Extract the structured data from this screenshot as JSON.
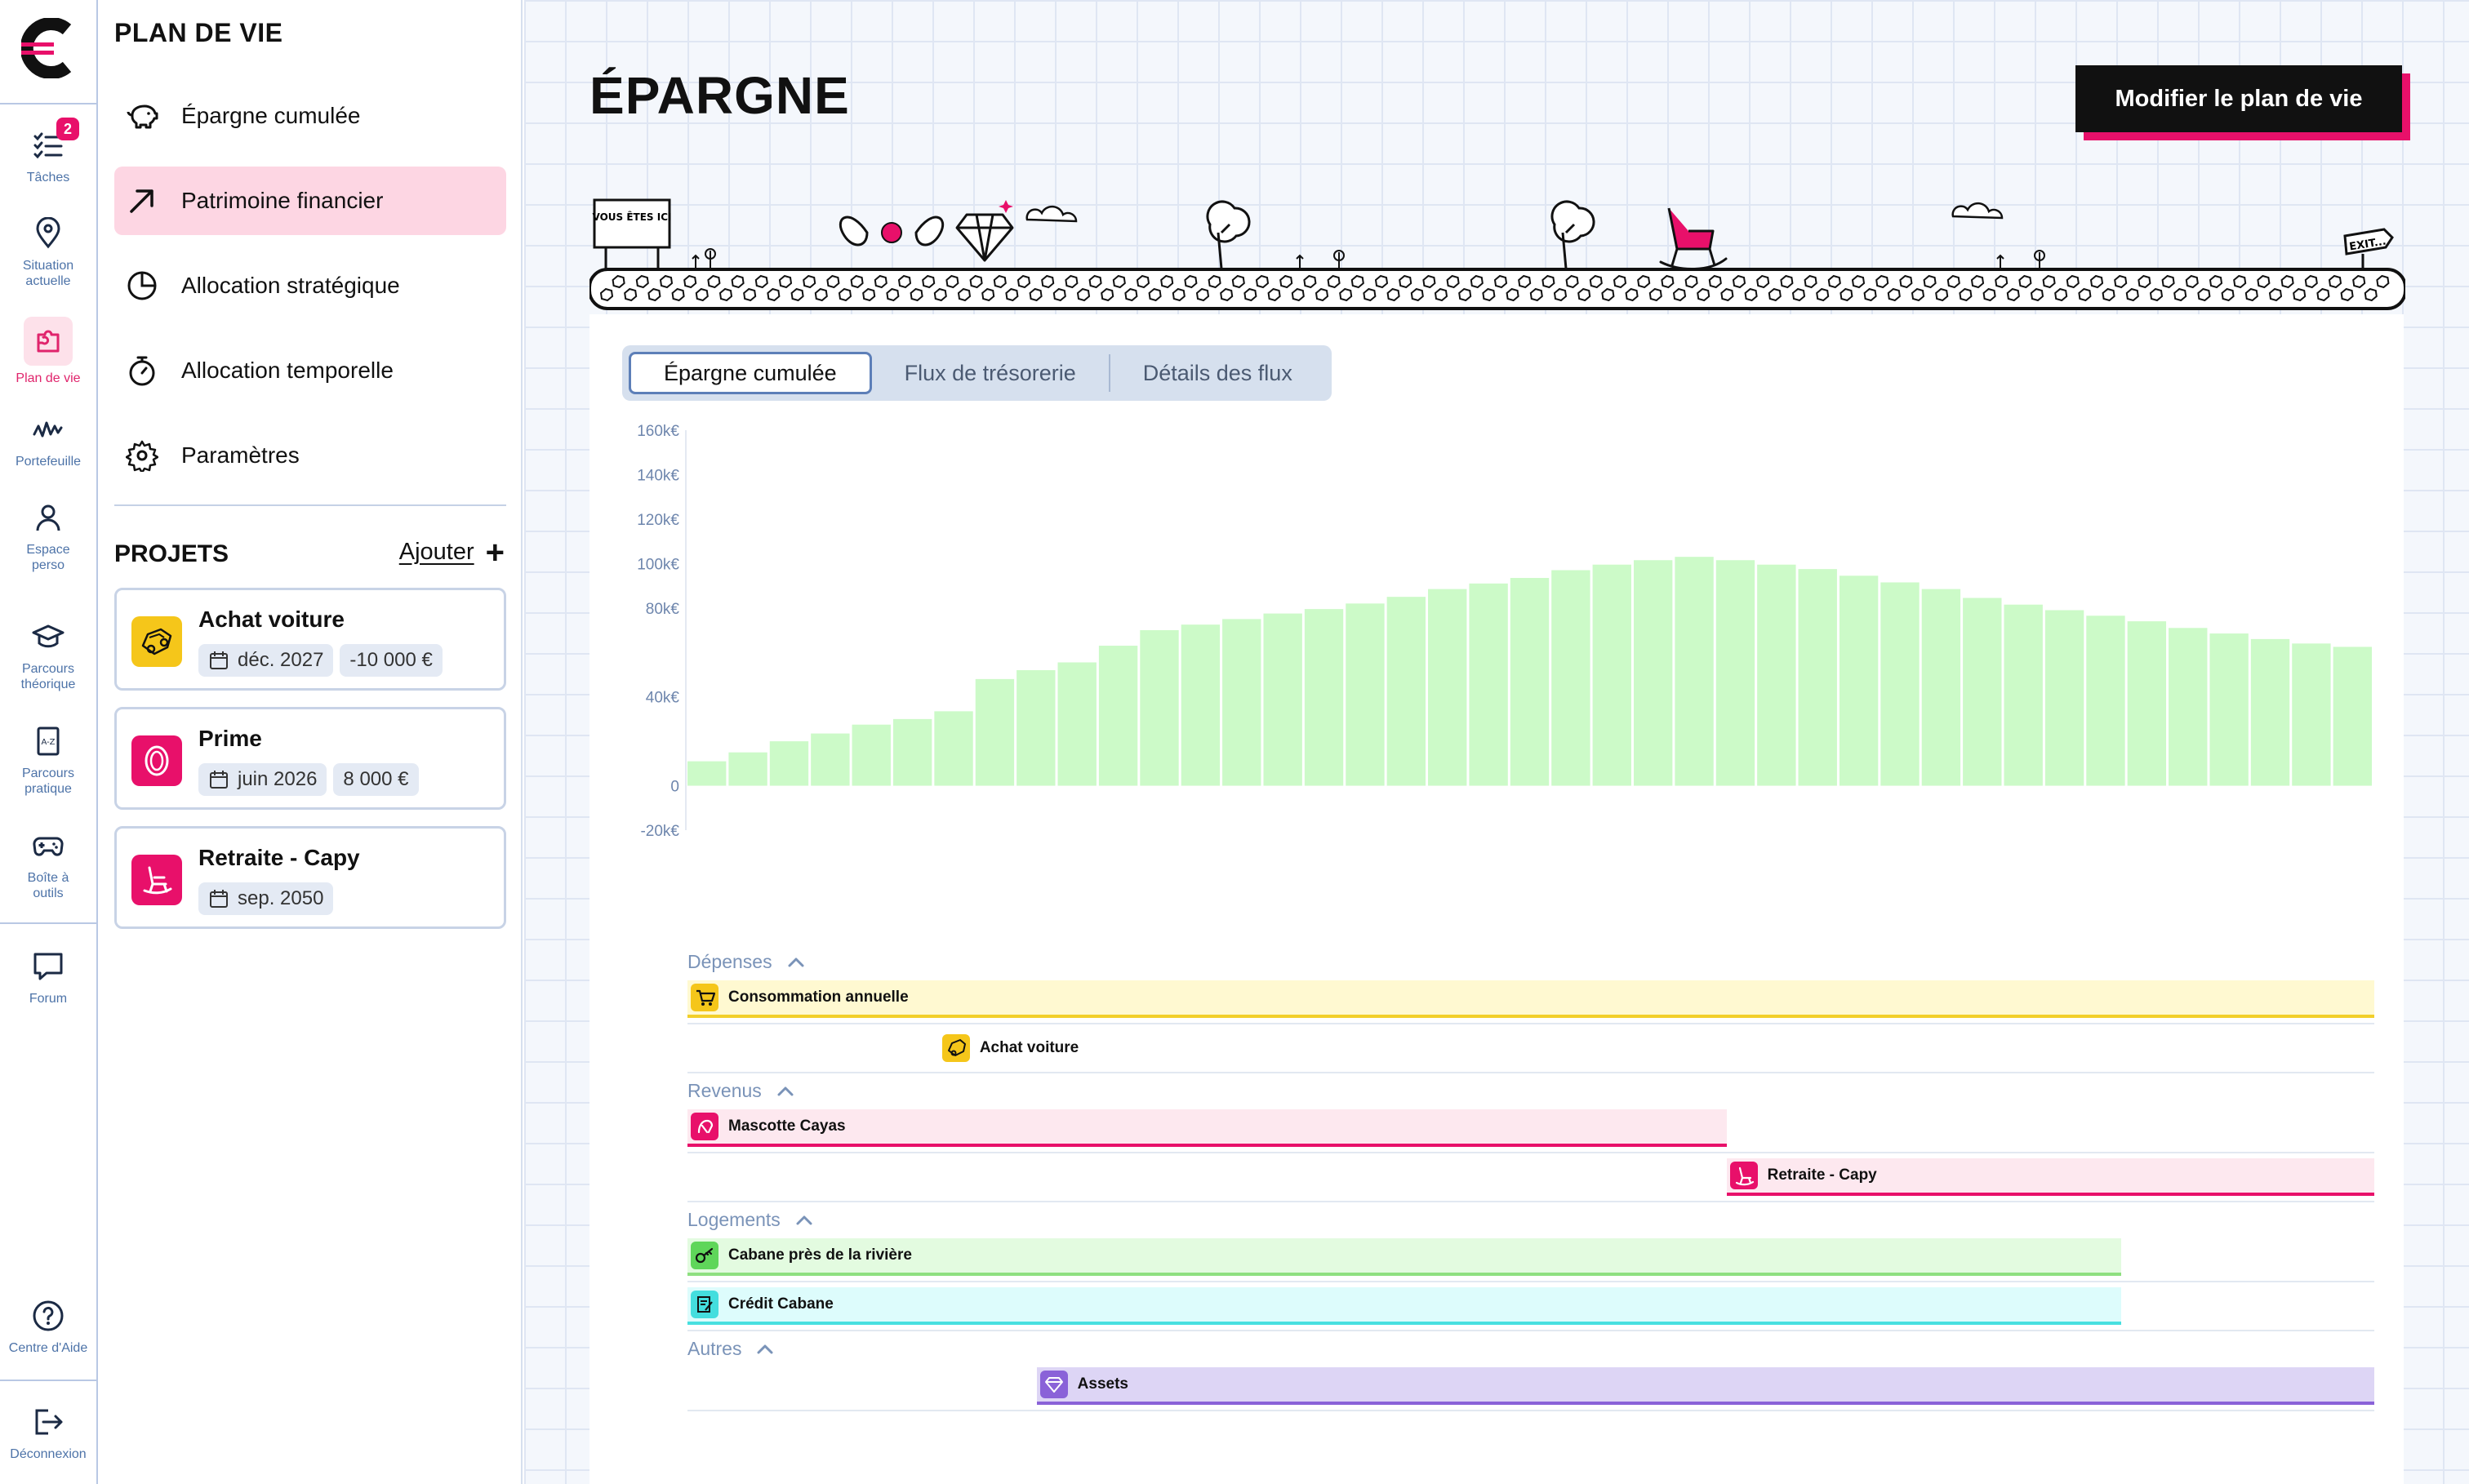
{
  "rail": {
    "items": [
      {
        "label": "Tâches",
        "icon": "tasks-icon",
        "badge": "2"
      },
      {
        "label": "Situation actuelle",
        "icon": "location-pin-icon"
      },
      {
        "label": "Plan de vie",
        "icon": "puzzle-icon",
        "active": true
      },
      {
        "label": "Portefeuille",
        "icon": "wave-chart-icon"
      },
      {
        "label": "Espace perso",
        "icon": "user-icon"
      },
      {
        "label": "Parcours théorique",
        "icon": "graduation-cap-icon"
      },
      {
        "label": "Parcours pratique",
        "icon": "a-z-book-icon"
      },
      {
        "label": "Boîte à outils",
        "icon": "gamepad-icon"
      },
      {
        "label": "Forum",
        "icon": "chat-bubble-icon"
      }
    ],
    "help": {
      "label": "Centre d'Aide",
      "icon": "help-circle-icon"
    },
    "logout": {
      "label": "Déconnexion",
      "icon": "logout-icon"
    }
  },
  "sidebar": {
    "title": "PLAN DE VIE",
    "menu": [
      {
        "label": "Épargne cumulée",
        "icon": "piggy-bank-icon"
      },
      {
        "label": "Patrimoine financier",
        "icon": "arrow-up-right-icon",
        "active": true
      },
      {
        "label": "Allocation stratégique",
        "icon": "pie-chart-icon"
      },
      {
        "label": "Allocation temporelle",
        "icon": "stopwatch-icon"
      },
      {
        "label": "Paramètres",
        "icon": "gear-icon"
      }
    ],
    "projects_title": "PROJETS",
    "add_label": "Ajouter",
    "projects": [
      {
        "name": "Achat voiture",
        "date": "déc. 2027",
        "amount": "-10 000 €",
        "icon": "car-sketch-icon",
        "color": "#f5c61a"
      },
      {
        "name": "Prime",
        "date": "juin 2026",
        "amount": "8 000 €",
        "icon": "coin-icon",
        "color": "#e8106a"
      },
      {
        "name": "Retraite - Capy",
        "date": "sep. 2050",
        "amount": "",
        "icon": "rocking-chair-icon",
        "color": "#e8106a"
      }
    ]
  },
  "main": {
    "title": "ÉPARGNE",
    "modify_button": "Modifier le plan de vie",
    "tabs": [
      {
        "label": "Épargne cumulée",
        "active": true
      },
      {
        "label": "Flux de trésorerie"
      },
      {
        "label": "Détails des flux"
      }
    ],
    "scene": {
      "sign_text": "VOUS ÊTES ICI",
      "exit_text": "EXIT..."
    }
  },
  "chart_data": {
    "type": "bar",
    "ylim": [
      -20000,
      160000
    ],
    "yticks": [
      {
        "value": 160000,
        "label": "160k€"
      },
      {
        "value": 140000,
        "label": "140k€"
      },
      {
        "value": 120000,
        "label": "120k€"
      },
      {
        "value": 100000,
        "label": "100k€"
      },
      {
        "value": 80000,
        "label": "80k€"
      },
      {
        "value": 40000,
        "label": "40k€"
      },
      {
        "value": 0,
        "label": "0"
      },
      {
        "value": -20000,
        "label": "-20k€"
      }
    ],
    "values": [
      11000,
      15000,
      20000,
      23500,
      27500,
      30000,
      33500,
      48000,
      52000,
      55500,
      63000,
      70000,
      72500,
      75000,
      77500,
      79500,
      82000,
      85000,
      88500,
      91000,
      93500,
      97000,
      99500,
      101500,
      103000,
      101500,
      99500,
      97500,
      94500,
      91500,
      88500,
      84500,
      81500,
      79000,
      76500,
      74000,
      71000,
      68500,
      66000,
      64000,
      62500
    ],
    "color": "#ccfac8"
  },
  "gantt": {
    "sections": [
      {
        "label": "Dépenses",
        "rows": [
          {
            "label": "Consommation annuelle",
            "start": 0,
            "end": 1,
            "icon": "cart-icon",
            "fill": "#fff9d1",
            "line": "#f2cf2a",
            "icon_bg": "#f5c61a"
          },
          {
            "label": "Achat voiture",
            "start": 0.149,
            "end": null,
            "icon": "car-sketch-icon",
            "fill": "",
            "line": "",
            "icon_bg": "#f5c61a"
          }
        ]
      },
      {
        "label": "Revenus",
        "rows": [
          {
            "label": "Mascotte Cayas",
            "start": 0,
            "end": 0.616,
            "icon": "mascot-icon",
            "fill": "#fde8ef",
            "line": "#e8106a",
            "icon_bg": "#e8106a"
          },
          {
            "label": "Retraite - Capy",
            "start": 0.616,
            "end": 1,
            "icon": "rocking-chair-icon",
            "fill": "#fde8ef",
            "line": "#e8106a",
            "icon_bg": "#e8106a"
          }
        ]
      },
      {
        "label": "Logements",
        "rows": [
          {
            "label": "Cabane près de la rivière",
            "start": 0,
            "end": 0.85,
            "icon": "key-icon",
            "fill": "#e3fbe0",
            "line": "#8ee080",
            "icon_bg": "#5fd65a"
          },
          {
            "label": "Crédit Cabane",
            "start": 0,
            "end": 0.85,
            "icon": "contract-icon",
            "fill": "#ddfcfc",
            "line": "#48e0e0",
            "icon_bg": "#44dede"
          }
        ]
      },
      {
        "label": "Autres",
        "rows": [
          {
            "label": "Assets",
            "start": 0.207,
            "end": 1,
            "icon": "diamond-icon",
            "fill": "#ddd5f5",
            "line": "#8a62d8",
            "icon_bg": "#8a62d8"
          }
        ]
      }
    ]
  }
}
